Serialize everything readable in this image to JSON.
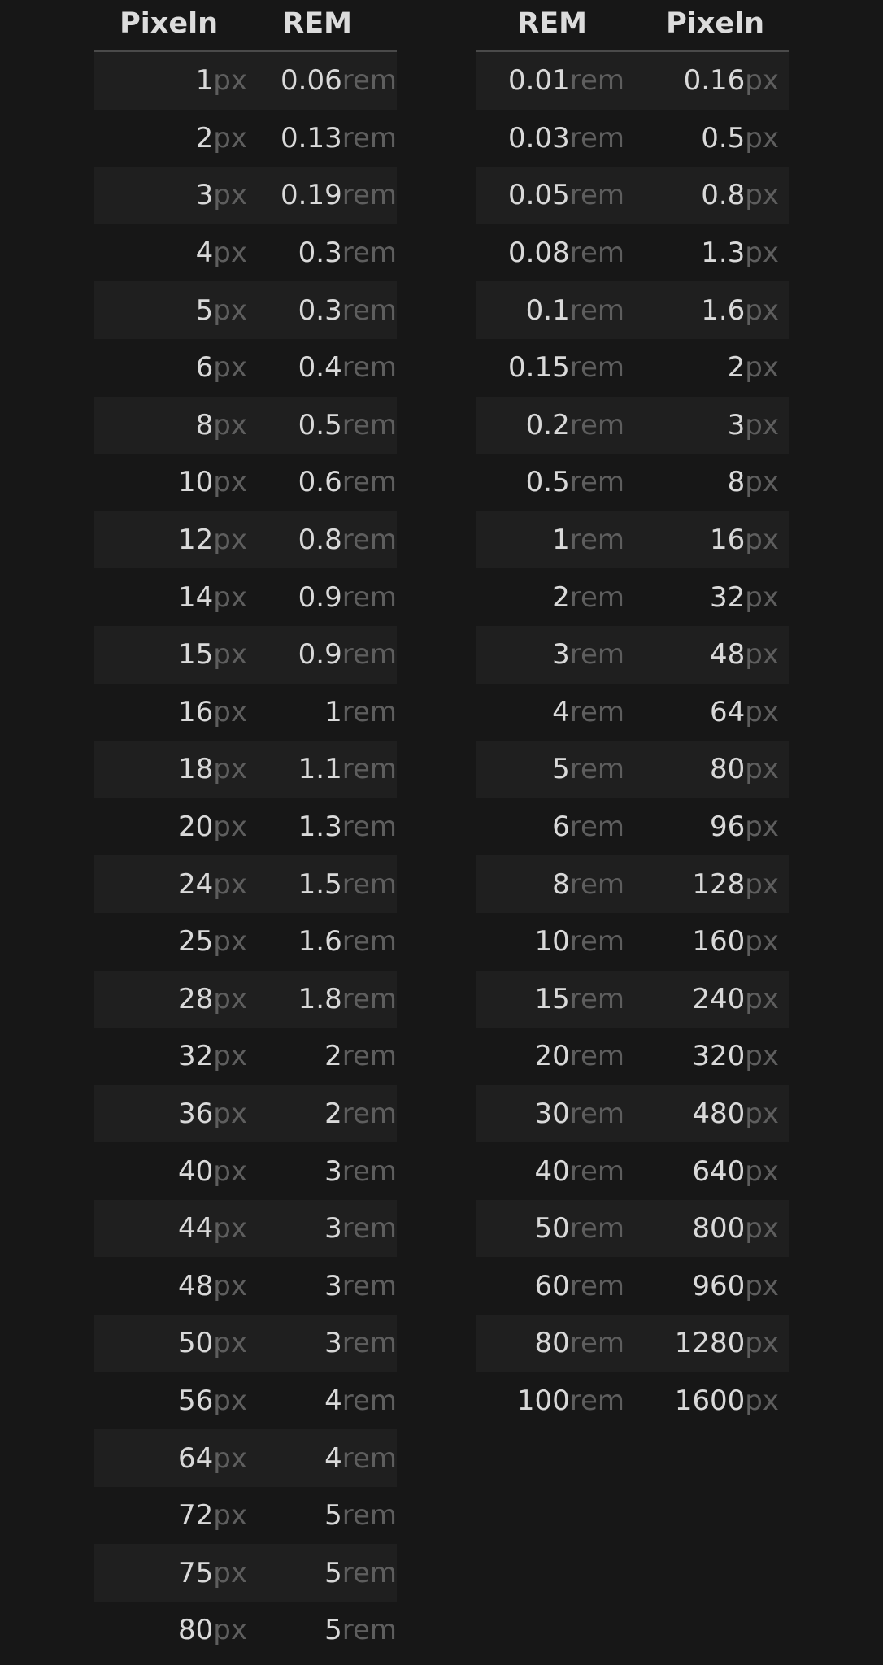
{
  "unit_labels": {
    "px": "px",
    "rem": "rem"
  },
  "px_to_rem": {
    "headers": [
      "Pixeln",
      "REM"
    ],
    "rows": [
      [
        "1",
        "0.06"
      ],
      [
        "2",
        "0.13"
      ],
      [
        "3",
        "0.19"
      ],
      [
        "4",
        "0.3"
      ],
      [
        "5",
        "0.3"
      ],
      [
        "6",
        "0.4"
      ],
      [
        "8",
        "0.5"
      ],
      [
        "10",
        "0.6"
      ],
      [
        "12",
        "0.8"
      ],
      [
        "14",
        "0.9"
      ],
      [
        "15",
        "0.9"
      ],
      [
        "16",
        "1"
      ],
      [
        "18",
        "1.1"
      ],
      [
        "20",
        "1.3"
      ],
      [
        "24",
        "1.5"
      ],
      [
        "25",
        "1.6"
      ],
      [
        "28",
        "1.8"
      ],
      [
        "32",
        "2"
      ],
      [
        "36",
        "2"
      ],
      [
        "40",
        "3"
      ],
      [
        "44",
        "3"
      ],
      [
        "48",
        "3"
      ],
      [
        "50",
        "3"
      ],
      [
        "56",
        "4"
      ],
      [
        "64",
        "4"
      ],
      [
        "72",
        "5"
      ],
      [
        "75",
        "5"
      ],
      [
        "80",
        "5"
      ]
    ]
  },
  "rem_to_px": {
    "headers": [
      "REM",
      "Pixeln"
    ],
    "rows": [
      [
        "0.01",
        "0.16"
      ],
      [
        "0.03",
        "0.5"
      ],
      [
        "0.05",
        "0.8"
      ],
      [
        "0.08",
        "1.3"
      ],
      [
        "0.1",
        "1.6"
      ],
      [
        "0.15",
        "2"
      ],
      [
        "0.2",
        "3"
      ],
      [
        "0.5",
        "8"
      ],
      [
        "1",
        "16"
      ],
      [
        "2",
        "32"
      ],
      [
        "3",
        "48"
      ],
      [
        "4",
        "64"
      ],
      [
        "5",
        "80"
      ],
      [
        "6",
        "96"
      ],
      [
        "8",
        "128"
      ],
      [
        "10",
        "160"
      ],
      [
        "15",
        "240"
      ],
      [
        "20",
        "320"
      ],
      [
        "30",
        "480"
      ],
      [
        "40",
        "640"
      ],
      [
        "50",
        "800"
      ],
      [
        "60",
        "960"
      ],
      [
        "80",
        "1280"
      ],
      [
        "100",
        "1600"
      ]
    ]
  }
}
